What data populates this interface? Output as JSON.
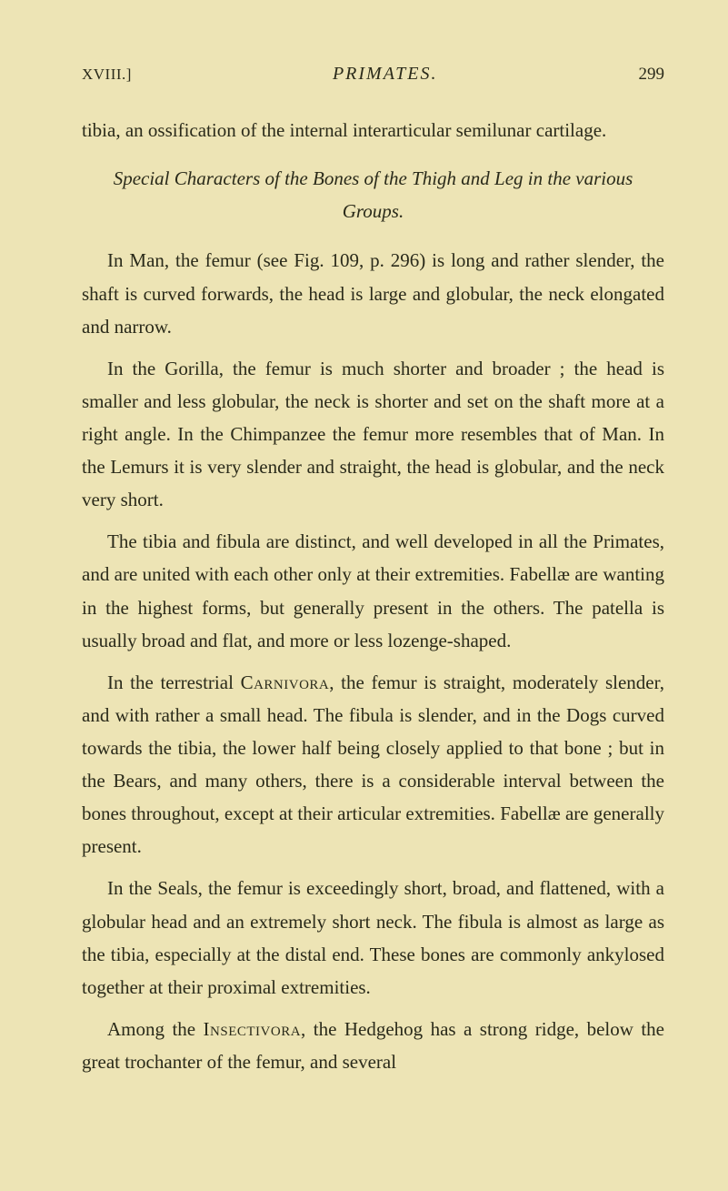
{
  "header": {
    "chapter": "XVIII.]",
    "title": "PRIMATES.",
    "page": "299"
  },
  "paragraphs": {
    "p1": "tibia, an ossification of the internal interarticular semilunar cartilage.",
    "sectionTitle": "Special Characters of the Bones of the Thigh and Leg in the various Groups.",
    "p2": "In Man, the femur (see Fig. 109, p. 296) is long and rather slender, the shaft is curved forwards, the head is large and globular, the neck elongated and narrow.",
    "p3": "In the Gorilla, the femur is much shorter and broader ; the head is smaller and less globular, the neck is shorter and set on the shaft more at a right angle. In the Chimpanzee the femur more resembles that of Man. In the Lemurs it is very slender and straight, the head is globular, and the neck very short.",
    "p4": "The tibia and fibula are distinct, and well developed in all the Primates, and are united with each other only at their extremities. Fabellæ are wanting in the highest forms, but generally present in the others. The patella is usually broad and flat, and more or less lozenge-shaped.",
    "p5_part1": "In the terrestrial ",
    "p5_carnivora": "Carnivora",
    "p5_part2": ", the femur is straight, moderately slender, and with rather a small head. The fibula is slender, and in the Dogs curved towards the tibia, the lower half being closely applied to that bone ; but in the Bears, and many others, there is a considerable interval between the bones throughout, except at their articular extremities. Fabellæ are generally present.",
    "p6": "In the Seals, the femur is exceedingly short, broad, and flattened, with a globular head and an extremely short neck. The fibula is almost as large as the tibia, especially at the distal end. These bones are commonly ankylosed together at their proximal extremities.",
    "p7_part1": "Among the ",
    "p7_insectivora": "Insectivora",
    "p7_part2": ", the Hedgehog has a strong ridge, below the great trochanter of the femur, and several"
  },
  "colors": {
    "background": "#ede4b5",
    "text": "#2a2a1a"
  },
  "typography": {
    "body_fontsize": 21,
    "header_fontsize": 19,
    "line_height": 1.72
  }
}
